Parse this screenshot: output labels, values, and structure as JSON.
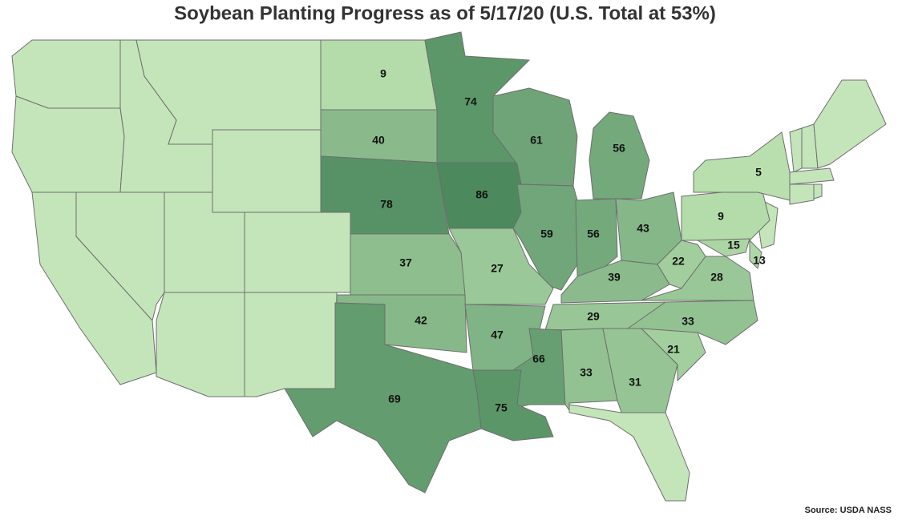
{
  "title": "Soybean Planting Progress as of 5/17/20 (U.S. Total at 53%)",
  "source": "Source: USDA NASS",
  "map": {
    "values": [
      9,
      74,
      40,
      78,
      86,
      61,
      56,
      59,
      56,
      43,
      27,
      37,
      9,
      5,
      15,
      13,
      22,
      39,
      28,
      29,
      33,
      42,
      47,
      66,
      33,
      31,
      21,
      75,
      69
    ],
    "color_range": [
      "#b9dfae",
      "#4c8a5e"
    ],
    "no_data_color": "#c4e5ba",
    "border_color": "#6e6e6e"
  }
}
